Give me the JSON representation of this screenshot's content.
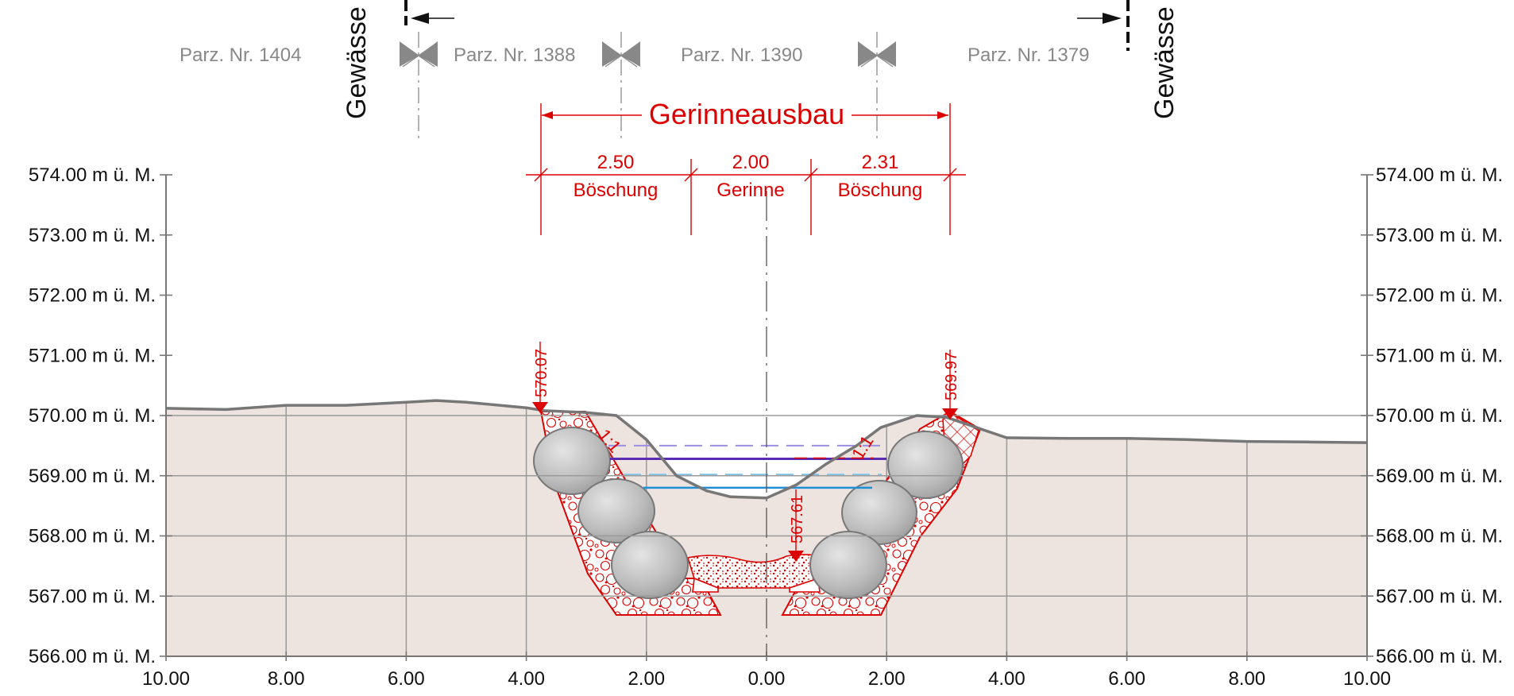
{
  "drawing": {
    "parcels": [
      {
        "id": "p1404",
        "label": "Parz. Nr. 1404",
        "x": -7.8
      },
      {
        "id": "p1388",
        "label": "Parz. Nr. 1388",
        "x": -2.3
      },
      {
        "id": "p1390",
        "label": "Parz. Nr. 1390",
        "x": -0.3
      },
      {
        "id": "p1379",
        "label": "Parz. Nr. 1379",
        "x": 4.2
      }
    ],
    "boundary_label": "Gewässe",
    "title": "Gerinneausbau",
    "dimensions": [
      {
        "id": "boeschung-left",
        "value": "2.50",
        "label": "Böschung"
      },
      {
        "id": "gerinne",
        "value": "2.00",
        "label": "Gerinne"
      },
      {
        "id": "boeschung-right",
        "value": "2.31",
        "label": "Böschung"
      }
    ],
    "elevation_labels": {
      "left_top": "570.07",
      "right_top": "569.97",
      "bottom": "567.61"
    },
    "slope_labels": {
      "left": "1:1",
      "right": "1:1"
    },
    "colors": {
      "red": "#dd0000",
      "terrain": "#777777",
      "ground_fill": "#ede3df",
      "water_blue": "#1e8ed6",
      "water_purple": "#5a2bb5",
      "dashed_purple": "#9b8ee6",
      "dashed_blue": "#7ec3ea",
      "boulder": "#c4c4c4"
    }
  },
  "chart_data": {
    "type": "cross-section",
    "y_unit": "m ü. M.",
    "ylim": [
      566,
      574
    ],
    "xlim": [
      -10,
      10
    ],
    "y_ticks": [
      {
        "value": 574,
        "label": "574.00 m ü. M."
      },
      {
        "value": 573,
        "label": "573.00 m ü. M."
      },
      {
        "value": 572,
        "label": "572.00 m ü. M."
      },
      {
        "value": 571,
        "label": "571.00 m ü. M."
      },
      {
        "value": 570,
        "label": "570.00 m ü. M."
      },
      {
        "value": 569,
        "label": "569.00 m ü. M."
      },
      {
        "value": 568,
        "label": "568.00 m ü. M."
      },
      {
        "value": 567,
        "label": "567.00 m ü. M."
      },
      {
        "value": 566,
        "label": "566.00 m ü. M."
      }
    ],
    "x_ticks": [
      {
        "value": -10,
        "label": "10.00"
      },
      {
        "value": -8,
        "label": "8.00"
      },
      {
        "value": -6,
        "label": "6.00"
      },
      {
        "value": -4,
        "label": "4.00"
      },
      {
        "value": -2,
        "label": "2.00"
      },
      {
        "value": 0,
        "label": "0.00"
      },
      {
        "value": 2,
        "label": "2.00"
      },
      {
        "value": 4,
        "label": "4.00"
      },
      {
        "value": 6,
        "label": "6.00"
      },
      {
        "value": 8,
        "label": "8.00"
      },
      {
        "value": 10,
        "label": "10.00"
      }
    ],
    "terrain": [
      [
        -10,
        570.12
      ],
      [
        -9,
        570.1
      ],
      [
        -8,
        570.17
      ],
      [
        -7,
        570.17
      ],
      [
        -6,
        570.22
      ],
      [
        -5.5,
        570.25
      ],
      [
        -5,
        570.22
      ],
      [
        -4,
        570.13
      ],
      [
        -3.7,
        570.08
      ],
      [
        -3,
        570.05
      ],
      [
        -2.5,
        570.0
      ],
      [
        -2.0,
        569.6
      ],
      [
        -1.5,
        569.0
      ],
      [
        -1.0,
        568.75
      ],
      [
        -0.6,
        568.65
      ],
      [
        0.0,
        568.63
      ],
      [
        0.5,
        568.85
      ],
      [
        1.0,
        569.2
      ],
      [
        1.5,
        569.5
      ],
      [
        1.9,
        569.8
      ],
      [
        2.5,
        570.0
      ],
      [
        3.0,
        569.97
      ],
      [
        3.5,
        569.8
      ],
      [
        4.0,
        569.63
      ],
      [
        5,
        569.62
      ],
      [
        6,
        569.62
      ],
      [
        7,
        569.6
      ],
      [
        8,
        569.57
      ],
      [
        9,
        569.56
      ],
      [
        10,
        569.55
      ]
    ],
    "design_profile": {
      "top_left": [
        -3.73,
        570.07
      ],
      "top_right": [
        3.08,
        569.97
      ],
      "bed_elevation": 567.61
    },
    "water_levels": [
      {
        "id": "dashed-purple-level",
        "elevation": 569.5,
        "style": "dashed"
      },
      {
        "id": "purple-level",
        "elevation": 569.28,
        "style": "solid"
      },
      {
        "id": "dashed-blue-level",
        "elevation": 569.02,
        "style": "dashed"
      },
      {
        "id": "blue-level",
        "elevation": 568.8,
        "style": "solid"
      }
    ]
  }
}
